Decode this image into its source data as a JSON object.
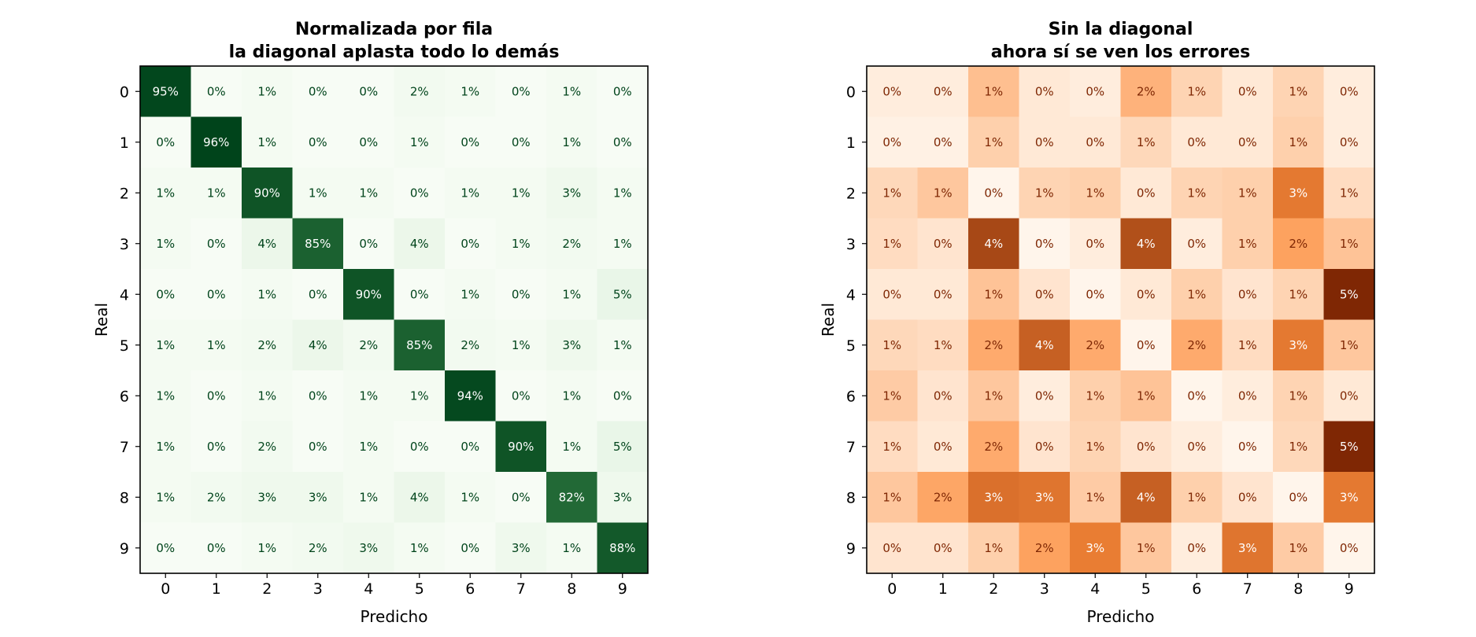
{
  "chart_data": [
    {
      "type": "heatmap",
      "title": "Normalizada por fila\nla diagonal aplasta todo lo demás",
      "xlabel": "Predicho",
      "ylabel": "Real",
      "x_ticks": [
        "0",
        "1",
        "2",
        "3",
        "4",
        "5",
        "6",
        "7",
        "8",
        "9"
      ],
      "y_ticks": [
        "0",
        "1",
        "2",
        "3",
        "4",
        "5",
        "6",
        "7",
        "8",
        "9"
      ],
      "colormap": "Greens",
      "colors": {
        "low": "#f7fcf5",
        "mid": "#74c476",
        "high": "#00441b",
        "text_dark": "#00441b",
        "text_light": "#ffffff"
      },
      "vmax": 96,
      "values": [
        [
          95,
          0,
          1,
          0,
          0,
          2,
          1,
          0,
          1,
          0
        ],
        [
          0,
          96,
          1,
          0,
          0,
          1,
          0,
          0,
          1,
          0
        ],
        [
          1,
          1,
          90,
          1,
          1,
          0,
          1,
          1,
          3,
          1
        ],
        [
          1,
          0,
          4,
          85,
          0,
          4,
          0,
          1,
          2,
          1
        ],
        [
          0,
          0,
          1,
          0,
          90,
          0,
          1,
          0,
          1,
          5
        ],
        [
          1,
          1,
          2,
          4,
          2,
          85,
          2,
          1,
          3,
          1
        ],
        [
          1,
          0,
          1,
          0,
          1,
          1,
          94,
          0,
          1,
          0
        ],
        [
          1,
          0,
          2,
          0,
          1,
          0,
          0,
          90,
          1,
          5
        ],
        [
          1,
          2,
          3,
          3,
          1,
          4,
          1,
          0,
          82,
          3
        ],
        [
          0,
          0,
          1,
          2,
          3,
          1,
          0,
          3,
          1,
          88
        ]
      ]
    },
    {
      "type": "heatmap",
      "title": "Sin la diagonal\nahora sí se ven los errores",
      "xlabel": "Predicho",
      "ylabel": "Real",
      "x_ticks": [
        "0",
        "1",
        "2",
        "3",
        "4",
        "5",
        "6",
        "7",
        "8",
        "9"
      ],
      "y_ticks": [
        "0",
        "1",
        "2",
        "3",
        "4",
        "5",
        "6",
        "7",
        "8",
        "9"
      ],
      "colormap": "Oranges",
      "colors": {
        "low": "#fff5eb",
        "mid": "#fd8d3c",
        "high": "#7f2704",
        "text_dark": "#7f2704",
        "text_light": "#ffffff"
      },
      "vmax": 5,
      "values": [
        [
          0,
          0,
          1,
          0,
          0,
          2,
          1,
          0,
          1,
          0
        ],
        [
          0,
          0,
          1,
          0,
          0,
          1,
          0,
          0,
          1,
          0
        ],
        [
          1,
          1,
          0,
          1,
          1,
          0,
          1,
          1,
          3,
          1
        ],
        [
          1,
          0,
          4,
          0,
          0,
          4,
          0,
          1,
          2,
          1
        ],
        [
          0,
          0,
          1,
          0,
          0,
          0,
          1,
          0,
          1,
          5
        ],
        [
          1,
          1,
          2,
          4,
          2,
          0,
          2,
          1,
          3,
          1
        ],
        [
          1,
          0,
          1,
          0,
          1,
          1,
          0,
          0,
          1,
          0
        ],
        [
          1,
          0,
          2,
          0,
          1,
          0,
          0,
          0,
          1,
          5
        ],
        [
          1,
          2,
          3,
          3,
          1,
          4,
          1,
          0,
          0,
          3
        ],
        [
          0,
          0,
          1,
          2,
          3,
          1,
          0,
          3,
          1,
          0
        ]
      ],
      "shade_values": [
        [
          0.2,
          0.2,
          1.3,
          0.3,
          0.2,
          1.6,
          0.8,
          0.3,
          0.8,
          0.2
        ],
        [
          0.1,
          0.1,
          0.9,
          0.3,
          0.3,
          0.7,
          0.3,
          0.3,
          0.9,
          0.2
        ],
        [
          0.7,
          1.1,
          0.0,
          0.8,
          0.9,
          0.3,
          0.8,
          0.9,
          3.0,
          0.6
        ],
        [
          0.6,
          0.4,
          4.2,
          0.0,
          0.2,
          4.0,
          0.2,
          0.9,
          2.0,
          1.2
        ],
        [
          0.3,
          0.3,
          1.2,
          0.4,
          0.0,
          0.3,
          0.9,
          0.4,
          0.8,
          5.1
        ],
        [
          0.7,
          0.6,
          1.8,
          3.6,
          1.8,
          0.0,
          1.8,
          0.6,
          3.0,
          1.1
        ],
        [
          1.0,
          0.4,
          1.1,
          0.2,
          0.9,
          1.2,
          0.0,
          0.2,
          0.8,
          0.3
        ],
        [
          0.6,
          0.3,
          1.8,
          0.4,
          0.8,
          0.4,
          0.2,
          0.0,
          0.7,
          5.0
        ],
        [
          1.1,
          1.9,
          3.2,
          3.1,
          1.0,
          3.6,
          0.9,
          0.4,
          0.0,
          3.0
        ],
        [
          0.4,
          0.4,
          0.9,
          2.0,
          2.9,
          1.1,
          0.2,
          3.1,
          1.0,
          0.0
        ]
      ]
    }
  ]
}
